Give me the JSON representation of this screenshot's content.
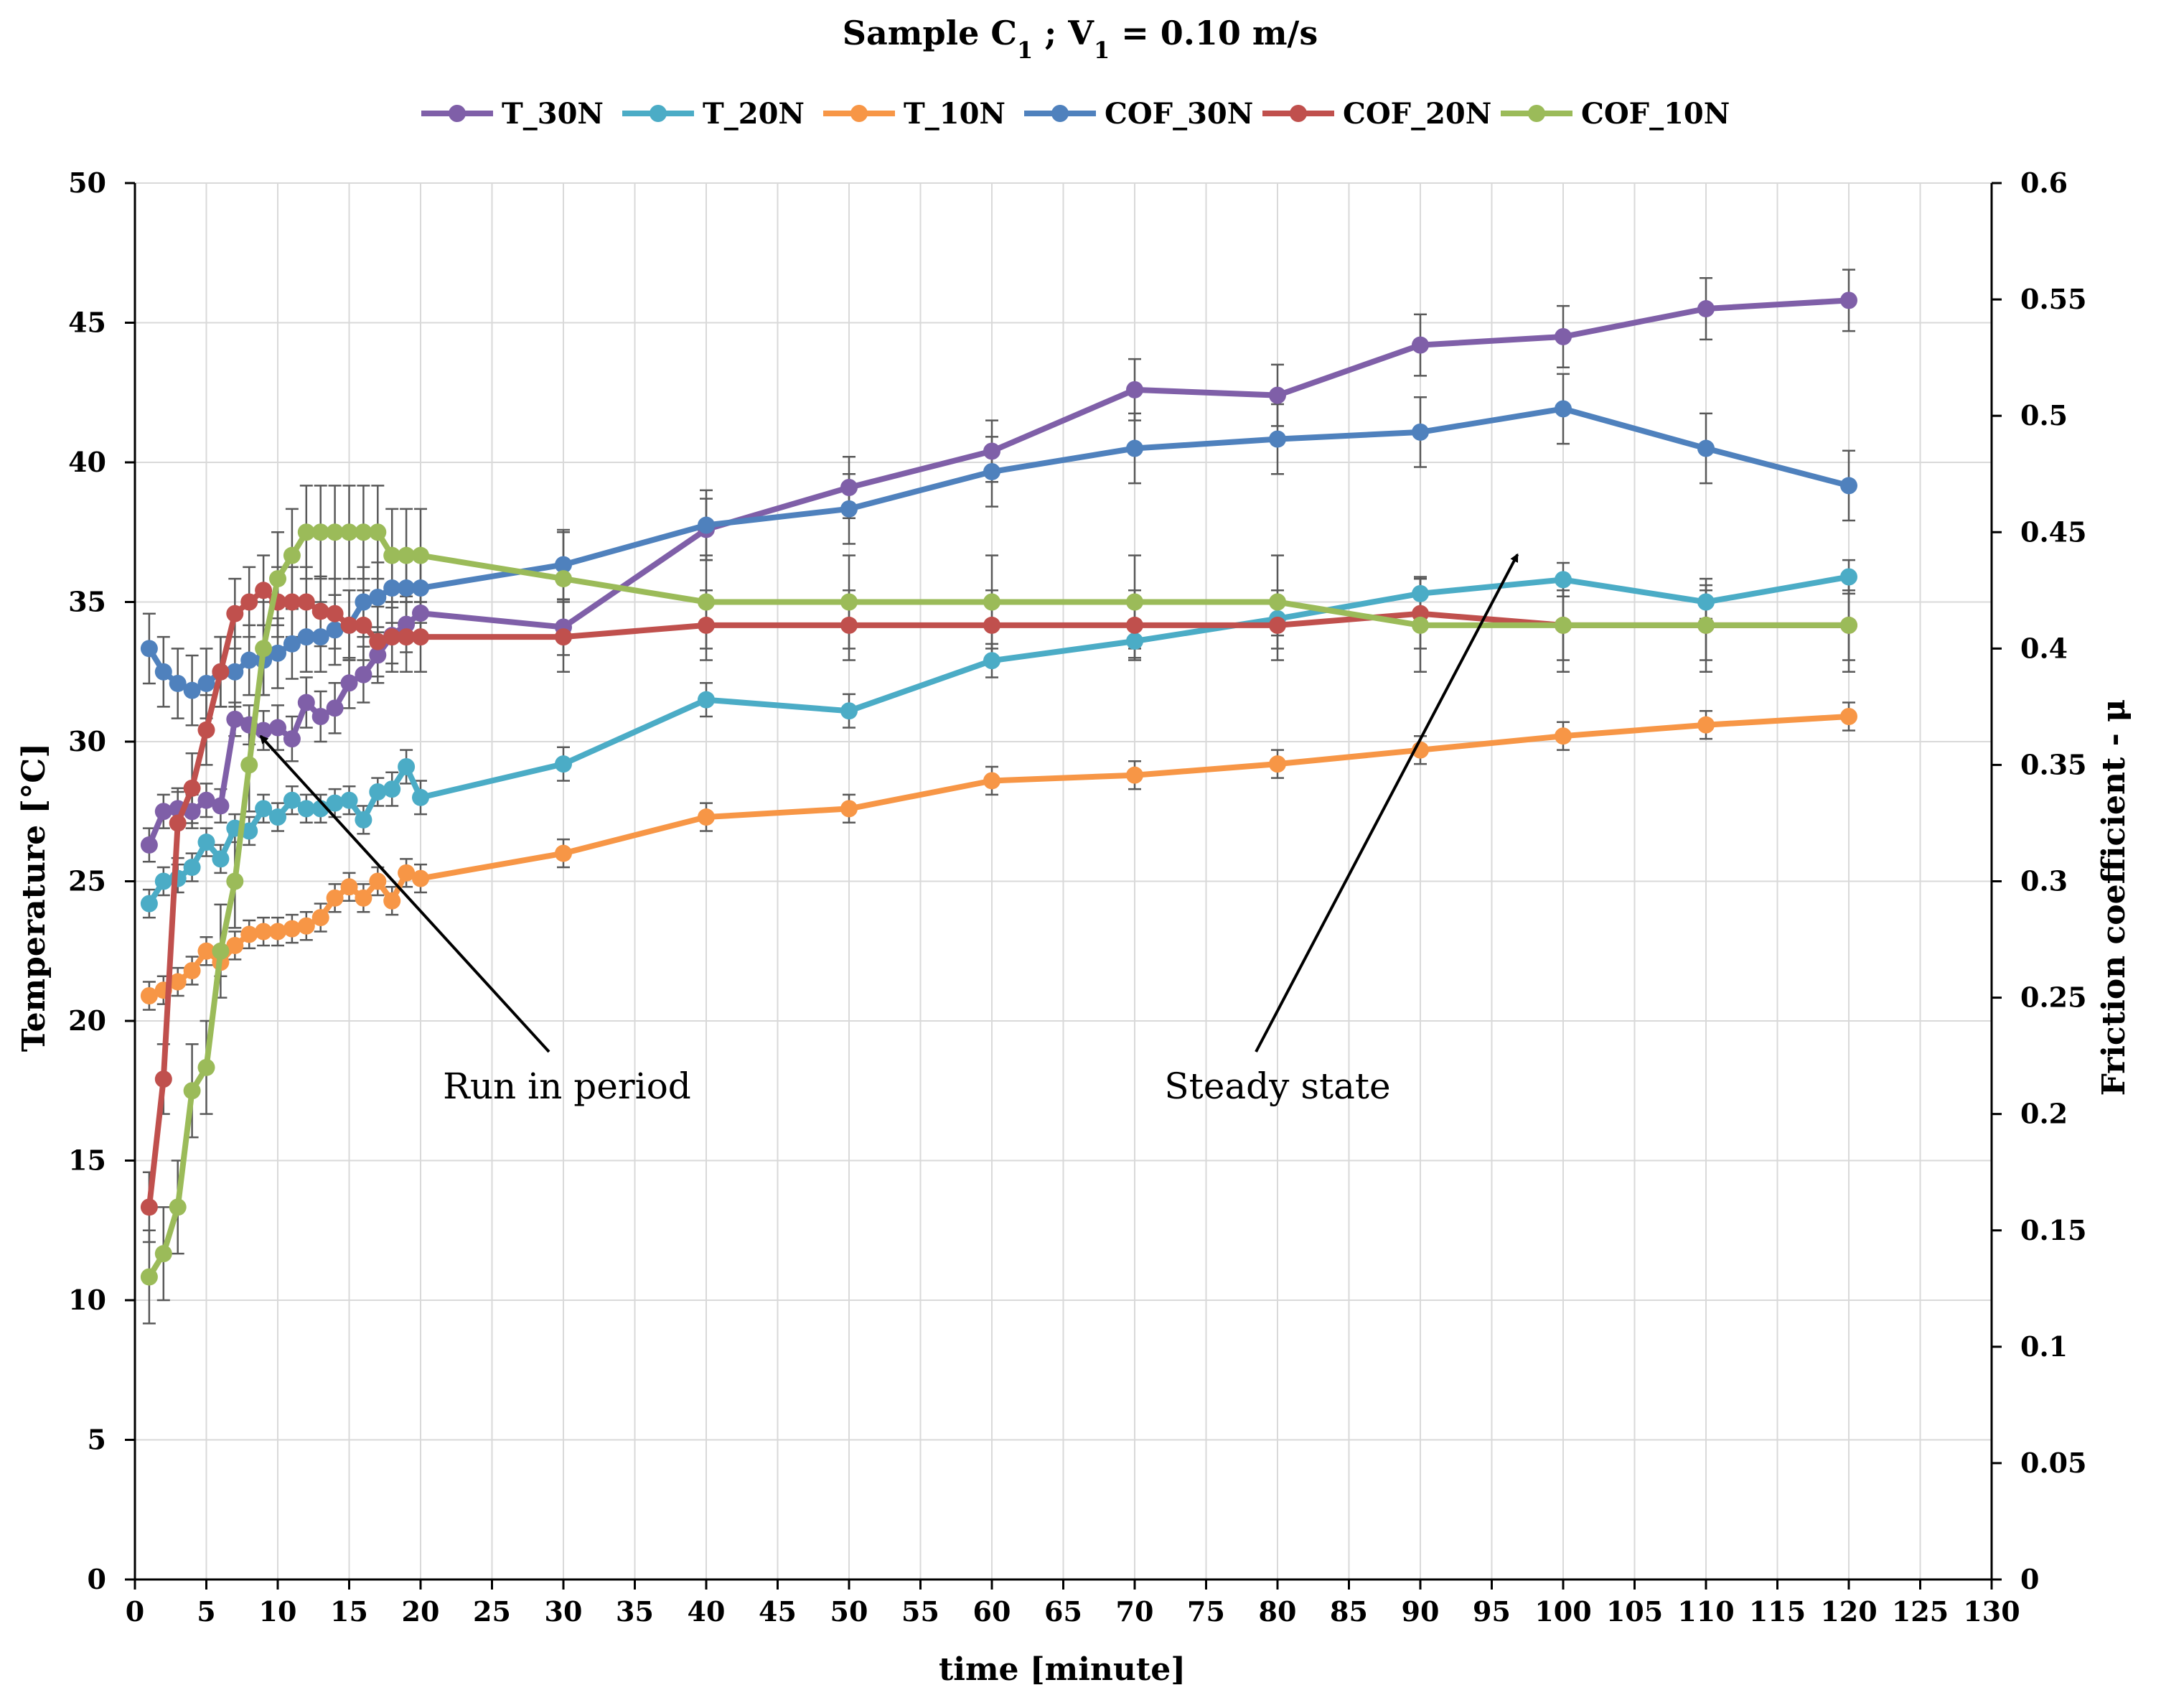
{
  "chart_data": {
    "type": "line",
    "title": "Sample C",
    "title_parts": {
      "prefix": "Sample C",
      "sub1": "1",
      "middle": " ;  V",
      "sub2": "1",
      "suffix": " = 0.10 m/s"
    },
    "xlabel": "time [minute]",
    "ylabel_left": "Temperature [°C]",
    "ylabel_right": "Friction coefficient - μ",
    "xlim": [
      0,
      130
    ],
    "xticks": [
      0,
      5,
      10,
      15,
      20,
      25,
      30,
      35,
      40,
      45,
      50,
      55,
      60,
      65,
      70,
      75,
      80,
      85,
      90,
      95,
      100,
      105,
      110,
      115,
      120,
      125,
      130
    ],
    "ylim_left": [
      0,
      50
    ],
    "yticks_left": [
      0,
      5,
      10,
      15,
      20,
      25,
      30,
      35,
      40,
      45,
      50
    ],
    "ylim_right": [
      0,
      0.6
    ],
    "yticks_right": [
      "0",
      "0.05",
      "0.1",
      "0.15",
      "0.2",
      "0.25",
      "0.3",
      "0.35",
      "0.4",
      "0.45",
      "0.5",
      "0.55",
      "0.6"
    ],
    "grid": true,
    "legend_position": "top",
    "series": [
      {
        "name": "T_30N",
        "axis": "left",
        "color": "#7f5fa8",
        "x": [
          1,
          2,
          3,
          4,
          5,
          6,
          7,
          8,
          9,
          10,
          11,
          12,
          13,
          14,
          15,
          16,
          17,
          18,
          19,
          20,
          30,
          40,
          50,
          60,
          70,
          80,
          90,
          100,
          110,
          120
        ],
        "values": [
          26.3,
          27.5,
          27.6,
          27.5,
          27.9,
          27.7,
          30.8,
          30.6,
          30.4,
          30.5,
          30.1,
          31.4,
          30.9,
          31.2,
          32.1,
          32.4,
          33.1,
          33.8,
          34.2,
          34.6,
          34.1,
          37.6,
          39.1,
          40.4,
          42.6,
          42.4,
          44.2,
          44.5,
          45.5,
          45.8
        ],
        "error": [
          0.6,
          0.6,
          0.6,
          0.6,
          0.6,
          0.6,
          0.6,
          0.7,
          0.7,
          0.8,
          0.8,
          0.9,
          0.9,
          0.9,
          0.9,
          1.0,
          1.0,
          1.0,
          1.0,
          1.0,
          1.0,
          1.1,
          1.1,
          1.1,
          1.1,
          1.1,
          1.1,
          1.1,
          1.1,
          1.1
        ]
      },
      {
        "name": "T_20N",
        "axis": "left",
        "color": "#4bacc6",
        "x": [
          1,
          2,
          3,
          4,
          5,
          6,
          7,
          8,
          9,
          10,
          11,
          12,
          13,
          14,
          15,
          16,
          17,
          18,
          19,
          20,
          30,
          40,
          50,
          60,
          70,
          80,
          90,
          100,
          110,
          120
        ],
        "values": [
          24.2,
          25.0,
          25.1,
          25.5,
          26.4,
          25.8,
          26.9,
          26.8,
          27.6,
          27.3,
          27.9,
          27.6,
          27.6,
          27.8,
          27.9,
          27.2,
          28.2,
          28.3,
          29.1,
          28.0,
          29.2,
          31.5,
          31.1,
          32.9,
          33.6,
          34.4,
          35.3,
          35.8,
          35.0,
          35.9
        ],
        "error": [
          0.5,
          0.5,
          0.5,
          0.5,
          0.5,
          0.5,
          0.5,
          0.5,
          0.5,
          0.5,
          0.5,
          0.5,
          0.5,
          0.5,
          0.5,
          0.5,
          0.5,
          0.6,
          0.6,
          0.6,
          0.6,
          0.6,
          0.6,
          0.6,
          0.6,
          0.6,
          0.6,
          0.6,
          0.6,
          0.6
        ]
      },
      {
        "name": "T_10N",
        "axis": "left",
        "color": "#f79646",
        "x": [
          1,
          2,
          3,
          4,
          5,
          6,
          7,
          8,
          9,
          10,
          11,
          12,
          13,
          14,
          15,
          16,
          17,
          18,
          19,
          20,
          30,
          40,
          50,
          60,
          70,
          80,
          90,
          100,
          110,
          120
        ],
        "values": [
          20.9,
          21.1,
          21.4,
          21.8,
          22.5,
          22.1,
          22.7,
          23.1,
          23.2,
          23.2,
          23.3,
          23.4,
          23.7,
          24.4,
          24.8,
          24.4,
          25.0,
          24.3,
          25.3,
          25.1,
          26.0,
          27.3,
          27.6,
          28.6,
          28.8,
          29.2,
          29.7,
          30.2,
          30.6,
          30.9
        ],
        "error": [
          0.5,
          0.5,
          0.5,
          0.5,
          0.5,
          0.5,
          0.5,
          0.5,
          0.5,
          0.5,
          0.5,
          0.5,
          0.5,
          0.5,
          0.5,
          0.5,
          0.5,
          0.5,
          0.5,
          0.5,
          0.5,
          0.5,
          0.5,
          0.5,
          0.5,
          0.5,
          0.5,
          0.5,
          0.5,
          0.5
        ]
      },
      {
        "name": "COF_30N",
        "axis": "right",
        "color": "#4f81bd",
        "x": [
          1,
          2,
          3,
          4,
          5,
          6,
          7,
          8,
          9,
          10,
          11,
          12,
          13,
          14,
          15,
          16,
          17,
          18,
          19,
          20,
          30,
          40,
          50,
          60,
          70,
          80,
          90,
          100,
          110,
          120
        ],
        "values": [
          0.4,
          0.39,
          0.385,
          0.382,
          0.385,
          0.39,
          0.39,
          0.395,
          0.395,
          0.398,
          0.402,
          0.405,
          0.405,
          0.408,
          0.41,
          0.42,
          0.422,
          0.426,
          0.426,
          0.426,
          0.436,
          0.453,
          0.46,
          0.476,
          0.486,
          0.49,
          0.493,
          0.503,
          0.486,
          0.47
        ],
        "error": [
          0.015,
          0.015,
          0.015,
          0.015,
          0.015,
          0.015,
          0.015,
          0.015,
          0.015,
          0.015,
          0.015,
          0.015,
          0.015,
          0.015,
          0.015,
          0.015,
          0.015,
          0.015,
          0.015,
          0.015,
          0.015,
          0.015,
          0.015,
          0.015,
          0.015,
          0.015,
          0.015,
          0.015,
          0.015,
          0.015
        ]
      },
      {
        "name": "COF_20N",
        "axis": "right",
        "color": "#c0504d",
        "x": [
          1,
          2,
          3,
          4,
          5,
          6,
          7,
          8,
          9,
          10,
          11,
          12,
          13,
          14,
          15,
          16,
          17,
          18,
          19,
          20,
          30,
          40,
          50,
          60,
          70,
          80,
          90,
          100,
          110,
          120
        ],
        "values": [
          0.16,
          0.215,
          0.325,
          0.34,
          0.365,
          0.39,
          0.415,
          0.42,
          0.425,
          0.42,
          0.42,
          0.42,
          0.416,
          0.415,
          0.41,
          0.41,
          0.403,
          0.405,
          0.405,
          0.405,
          0.405,
          0.41,
          0.41,
          0.41,
          0.41,
          0.41,
          0.415,
          0.41,
          0.41,
          0.41
        ],
        "error": [
          0.015,
          0.015,
          0.015,
          0.015,
          0.015,
          0.015,
          0.015,
          0.015,
          0.015,
          0.015,
          0.015,
          0.015,
          0.015,
          0.015,
          0.015,
          0.015,
          0.015,
          0.015,
          0.015,
          0.015,
          0.015,
          0.015,
          0.015,
          0.015,
          0.015,
          0.015,
          0.015,
          0.015,
          0.015,
          0.015
        ]
      },
      {
        "name": "COF_10N",
        "axis": "right",
        "color": "#9bbb59",
        "x": [
          1,
          2,
          3,
          4,
          5,
          6,
          7,
          8,
          9,
          10,
          11,
          12,
          13,
          14,
          15,
          16,
          17,
          18,
          19,
          20,
          30,
          40,
          50,
          60,
          70,
          80,
          90,
          100,
          110,
          120
        ],
        "values": [
          0.13,
          0.14,
          0.16,
          0.21,
          0.22,
          0.27,
          0.3,
          0.35,
          0.4,
          0.43,
          0.44,
          0.45,
          0.45,
          0.45,
          0.45,
          0.45,
          0.45,
          0.44,
          0.44,
          0.44,
          0.43,
          0.42,
          0.42,
          0.42,
          0.42,
          0.42,
          0.41,
          0.41,
          0.41,
          0.41
        ],
        "error": [
          0.02,
          0.02,
          0.02,
          0.02,
          0.02,
          0.02,
          0.02,
          0.02,
          0.02,
          0.02,
          0.02,
          0.02,
          0.02,
          0.02,
          0.02,
          0.02,
          0.02,
          0.02,
          0.02,
          0.02,
          0.02,
          0.02,
          0.02,
          0.02,
          0.02,
          0.02,
          0.02,
          0.02,
          0.02,
          0.02
        ]
      }
    ],
    "annotations": [
      {
        "text": "Run in period",
        "arrow_target": {
          "x": 8.8,
          "y_left": 30.2
        }
      },
      {
        "text": "Steady state",
        "arrow_target": {
          "x": 96.8,
          "y_left": 36.7
        }
      }
    ]
  }
}
